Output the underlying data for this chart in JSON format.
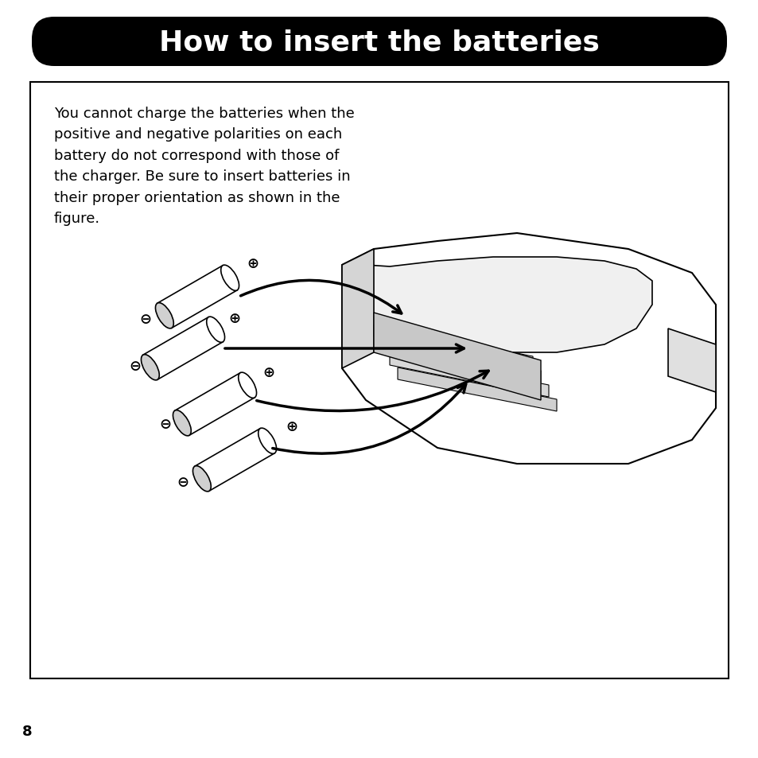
{
  "title": "How to insert the batteries",
  "title_bg": "#000000",
  "title_color": "#ffffff",
  "title_fontsize": 26,
  "body_text": "You cannot charge the batteries when the\npositive and negative polarities on each\nbattery do not correspond with those of\nthe charger. Be sure to insert batteries in\ntheir proper orientation as shown in the\nfigure.",
  "body_fontsize": 13,
  "page_number": "8",
  "page_fontsize": 13,
  "bg_color": "#ffffff",
  "border_color": "#000000",
  "pm_fontsize": 13
}
